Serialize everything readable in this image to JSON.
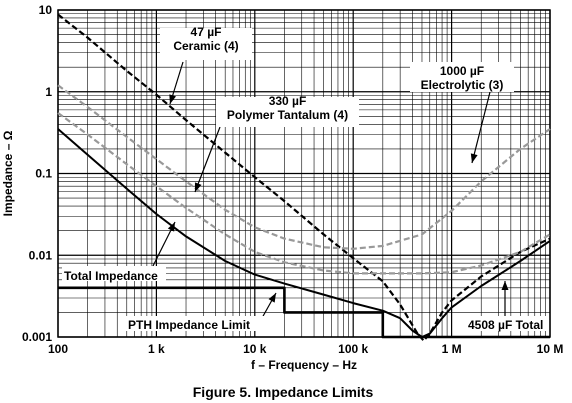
{
  "chart_data": {
    "type": "line",
    "x_scale": "log",
    "y_scale": "log",
    "xlim": [
      100,
      10000000
    ],
    "ylim": [
      0.001,
      10
    ],
    "xlabel": "f – Frequency – Hz",
    "ylabel": "Impedance – Ω",
    "caption": "Figure 5. Impedance Limits",
    "grid": true,
    "x_ticks": [
      {
        "value": 100,
        "label": "100"
      },
      {
        "value": 1000,
        "label": "1 k"
      },
      {
        "value": 10000,
        "label": "10 k"
      },
      {
        "value": 100000,
        "label": "100 k"
      },
      {
        "value": 1000000,
        "label": "1 M"
      },
      {
        "value": 10000000,
        "label": "10 M"
      }
    ],
    "y_ticks": [
      {
        "value": 10,
        "label": "10"
      },
      {
        "value": 1,
        "label": "1"
      },
      {
        "value": 0.1,
        "label": "0.1"
      },
      {
        "value": 0.01,
        "label": "0.01"
      },
      {
        "value": 0.001,
        "label": "0.001"
      }
    ],
    "series": [
      {
        "name": "47 µF Ceramic (4)",
        "style": "dashed",
        "color": "#000000",
        "points": [
          [
            100,
            8.8
          ],
          [
            200,
            4.6
          ],
          [
            500,
            1.8
          ],
          [
            1000,
            0.92
          ],
          [
            2000,
            0.45
          ],
          [
            5000,
            0.18
          ],
          [
            10000,
            0.09
          ],
          [
            20000,
            0.046
          ],
          [
            50000,
            0.018
          ],
          [
            100000,
            0.0092
          ],
          [
            200000,
            0.0048
          ],
          [
            300000,
            0.0025
          ],
          [
            450000,
            0.0011
          ],
          [
            520000,
            0.0009
          ],
          [
            600000,
            0.0011
          ],
          [
            800000,
            0.002
          ],
          [
            1000000,
            0.0028
          ],
          [
            2000000,
            0.0055
          ],
          [
            5000000,
            0.011
          ],
          [
            10000000,
            0.016
          ]
        ]
      },
      {
        "name": "330 µF Polymer Tantalum (4)",
        "style": "dashed",
        "color": "#999999",
        "points": [
          [
            100,
            0.55
          ],
          [
            200,
            0.3
          ],
          [
            500,
            0.13
          ],
          [
            1000,
            0.07
          ],
          [
            2000,
            0.038
          ],
          [
            5000,
            0.018
          ],
          [
            10000,
            0.011
          ],
          [
            20000,
            0.0082
          ],
          [
            50000,
            0.0065
          ],
          [
            100000,
            0.006
          ],
          [
            200000,
            0.006
          ],
          [
            500000,
            0.006
          ],
          [
            1000000,
            0.0062
          ],
          [
            2000000,
            0.0075
          ],
          [
            5000000,
            0.011
          ],
          [
            10000000,
            0.018
          ]
        ]
      },
      {
        "name": "1000 µF Electrolytic (3)",
        "style": "dashed",
        "color": "#999999",
        "points": [
          [
            100,
            1.2
          ],
          [
            200,
            0.65
          ],
          [
            500,
            0.28
          ],
          [
            1000,
            0.15
          ],
          [
            2000,
            0.08
          ],
          [
            5000,
            0.036
          ],
          [
            10000,
            0.022
          ],
          [
            20000,
            0.016
          ],
          [
            50000,
            0.0125
          ],
          [
            100000,
            0.012
          ],
          [
            200000,
            0.013
          ],
          [
            500000,
            0.018
          ],
          [
            1000000,
            0.035
          ],
          [
            2000000,
            0.08
          ],
          [
            5000000,
            0.2
          ],
          [
            10000000,
            0.35
          ]
        ]
      },
      {
        "name": "Total Impedance",
        "style": "solid",
        "color": "#000000",
        "points": [
          [
            100,
            0.35
          ],
          [
            200,
            0.17
          ],
          [
            500,
            0.065
          ],
          [
            1000,
            0.032
          ],
          [
            2000,
            0.017
          ],
          [
            5000,
            0.0085
          ],
          [
            10000,
            0.0058
          ],
          [
            20000,
            0.0045
          ],
          [
            50000,
            0.0033
          ],
          [
            100000,
            0.0026
          ],
          [
            200000,
            0.0021
          ],
          [
            300000,
            0.0017
          ],
          [
            400000,
            0.0012
          ],
          [
            500000,
            0.001
          ],
          [
            600000,
            0.0011
          ],
          [
            800000,
            0.0017
          ],
          [
            1000000,
            0.0023
          ],
          [
            2000000,
            0.0042
          ],
          [
            5000000,
            0.0085
          ],
          [
            10000000,
            0.015
          ]
        ]
      },
      {
        "name": "PTH Impedance Limit",
        "style": "solid-thick",
        "color": "#000000",
        "points": [
          [
            100,
            0.004
          ],
          [
            20000,
            0.004
          ],
          [
            20000,
            0.002
          ],
          [
            200000,
            0.002
          ],
          [
            200000,
            0.001
          ],
          [
            10000000,
            0.001
          ]
        ]
      }
    ],
    "annotations": [
      {
        "lines": [
          "47 µF",
          "Ceramic (4)"
        ]
      },
      {
        "lines": [
          "330 µF",
          "Polymer Tantalum (4)"
        ]
      },
      {
        "lines": [
          "1000 µF",
          "Electrolytic  (3)"
        ]
      },
      {
        "lines": [
          "Total Impedance"
        ]
      },
      {
        "lines": [
          "PTH Impedance Limit"
        ]
      },
      {
        "lines": [
          "4508 µF Total"
        ]
      }
    ]
  }
}
